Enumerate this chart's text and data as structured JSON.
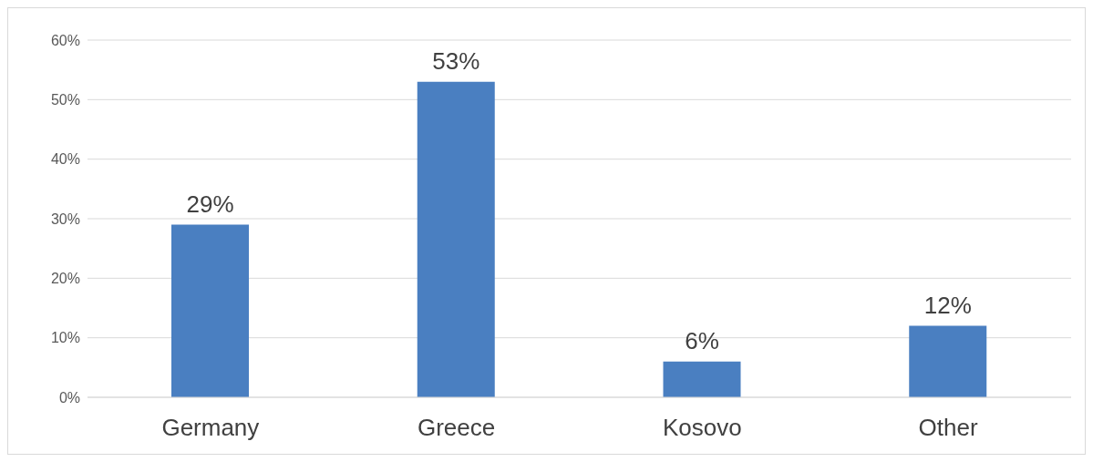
{
  "chart_data": {
    "type": "bar",
    "categories": [
      "Germany",
      "Greece",
      "Kosovo",
      "Other"
    ],
    "values": [
      29,
      53,
      6,
      12
    ],
    "value_labels": [
      "29%",
      "53%",
      "6%",
      "12%"
    ],
    "color": "#4a7fc1",
    "ylim": [
      0,
      60
    ],
    "yticks": [
      {
        "value": 0,
        "label": "0%"
      },
      {
        "value": 10,
        "label": "10%"
      },
      {
        "value": 20,
        "label": "20%"
      },
      {
        "value": 30,
        "label": "30%"
      },
      {
        "value": 40,
        "label": "40%"
      },
      {
        "value": 50,
        "label": "50%"
      },
      {
        "value": 60,
        "label": "60%"
      }
    ],
    "grid": "y"
  }
}
